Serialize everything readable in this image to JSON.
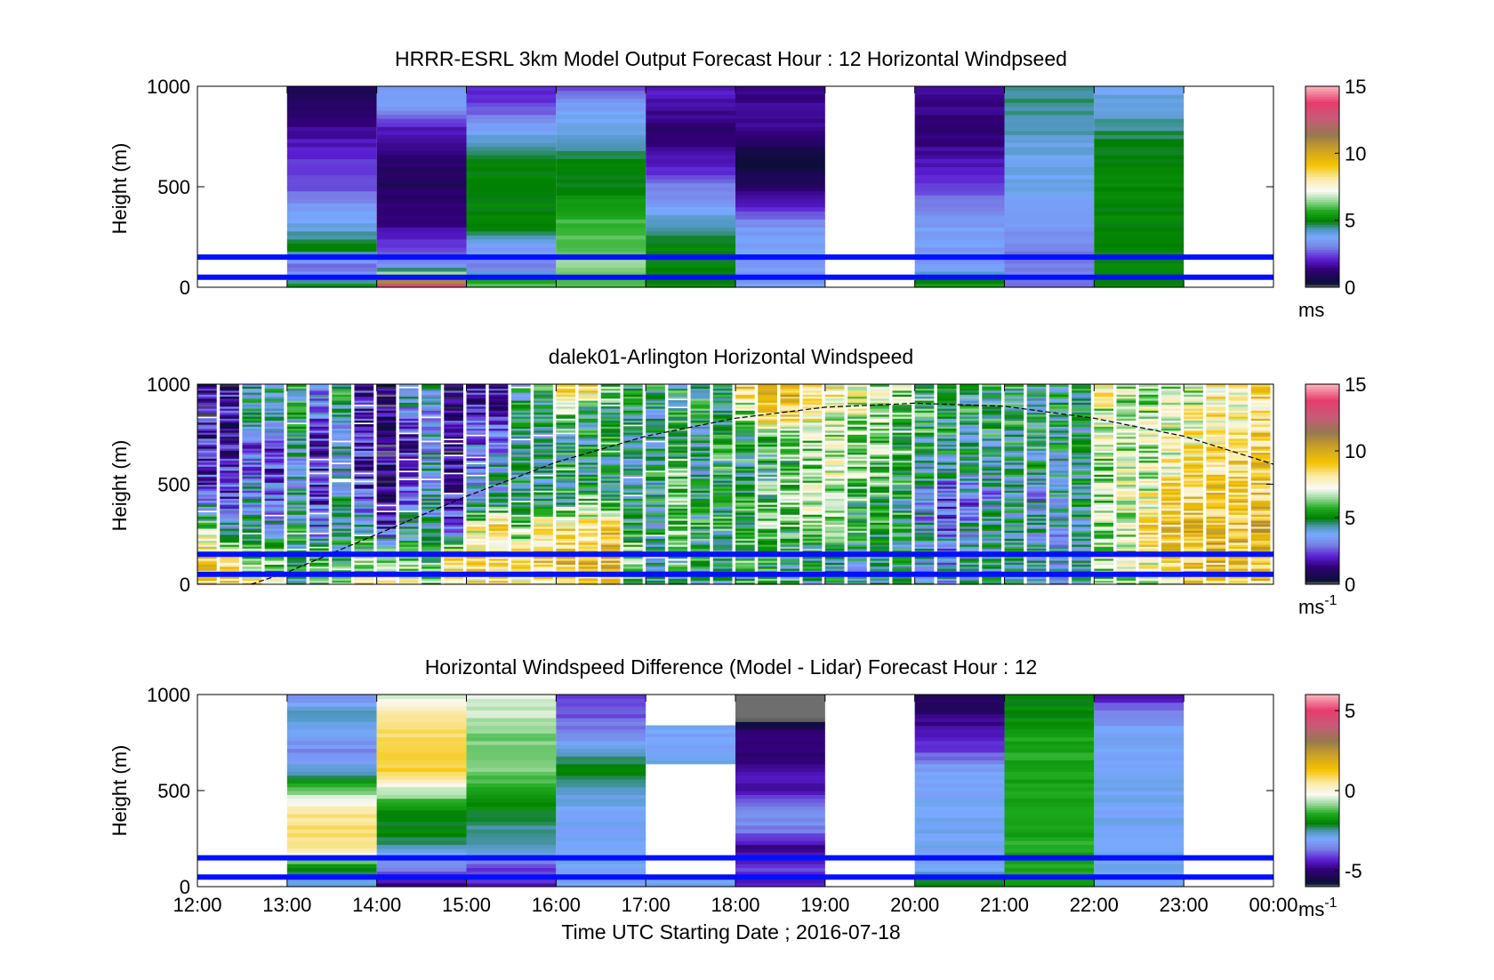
{
  "figure": {
    "xlabel": "Time UTC  Starting Date ; 2016-07-18",
    "x_tick_labels": [
      "12:00",
      "13:00",
      "14:00",
      "15:00",
      "16:00",
      "17:00",
      "18:00",
      "19:00",
      "20:00",
      "21:00",
      "22:00",
      "23:00",
      "00:00"
    ]
  },
  "chart_data": [
    {
      "type": "heatmap",
      "title": "HRRR-ESRL 3km Model Output   Forecast Hour : 12 Horizontal Windpseed",
      "ylabel": "Height (m)",
      "y_ticks": [
        0,
        500,
        1000
      ],
      "ylim": [
        0,
        1000
      ],
      "xlim_hours": [
        12,
        24
      ],
      "colorbar": {
        "range": [
          0,
          15
        ],
        "ticks": [
          0,
          5,
          10,
          15
        ],
        "unit": "ms",
        "unit_sup": ""
      },
      "reference_lines_m": [
        150,
        50
      ],
      "columns": [
        {
          "start_hour": 13,
          "profile_m_s": [
            5.5,
            2.5,
            5,
            4,
            3.5,
            2.5,
            2.5,
            2,
            1.5,
            1,
            0.8
          ]
        },
        {
          "start_hour": 14,
          "profile_m_s": [
            14,
            3.5,
            2.5,
            1.5,
            1.2,
            1,
            1,
            1.5,
            2,
            3.5,
            3.5
          ]
        },
        {
          "start_hour": 15,
          "profile_m_s": [
            6.5,
            3,
            3.5,
            5,
            5,
            5,
            5,
            4.5,
            3.5,
            2.5,
            2
          ]
        },
        {
          "start_hour": 16,
          "profile_m_s": [
            6,
            6.5,
            6,
            6,
            5.5,
            5,
            5,
            4.5,
            4,
            3.5,
            2.5
          ]
        },
        {
          "start_hour": 17,
          "profile_m_s": [
            5,
            5,
            5,
            4.5,
            3.5,
            3,
            2,
            1.5,
            1.2,
            1.8,
            2
          ]
        },
        {
          "start_hour": 18,
          "profile_m_s": [
            3.5,
            3.5,
            3.5,
            3.5,
            2,
            1.2,
            0.4,
            0.8,
            1.5,
            1.5,
            1.5
          ]
        },
        {
          "start_hour": 20,
          "profile_m_s": [
            5.5,
            3.5,
            3.5,
            3.5,
            3,
            2.5,
            2,
            1.5,
            1.2,
            1.5,
            1.5
          ]
        },
        {
          "start_hour": 21,
          "profile_m_s": [
            3,
            3,
            3,
            3.5,
            3.5,
            4,
            4,
            4,
            4.5,
            4.5,
            4.5
          ]
        },
        {
          "start_hour": 22,
          "profile_m_s": [
            5,
            5,
            5,
            5,
            5,
            5,
            5,
            5,
            4.5,
            4,
            4
          ]
        }
      ]
    },
    {
      "type": "heatmap",
      "title": "dalek01-Arlington  Horizontal Windspeed",
      "ylabel": "Height (m)",
      "y_ticks": [
        0,
        500,
        1000
      ],
      "ylim": [
        0,
        1000
      ],
      "xlim_hours": [
        12,
        24
      ],
      "colorbar": {
        "range": [
          0,
          15
        ],
        "ticks": [
          0,
          5,
          10,
          15
        ],
        "unit": "ms",
        "unit_sup": "-1"
      },
      "reference_lines_m": [
        150,
        50
      ],
      "columns": [
        {
          "start_hour": 12.0,
          "profile_m_s": [
            9,
            8.5,
            7,
            3,
            2,
            2,
            1.5,
            1.5
          ]
        },
        {
          "start_hour": 12.25,
          "profile_m_s": [
            8.5,
            8,
            4,
            2.5,
            2,
            1.5,
            2,
            1.5
          ]
        },
        {
          "start_hour": 12.5,
          "profile_m_s": [
            8,
            6,
            4.5,
            4,
            3,
            2.5,
            5,
            4
          ]
        },
        {
          "start_hour": 12.75,
          "profile_m_s": [
            7,
            6,
            4,
            3,
            2.5,
            2.5,
            4.5,
            5
          ]
        },
        {
          "start_hour": 13.0,
          "profile_m_s": [
            5,
            4.5,
            5,
            4.5,
            4,
            4.5,
            5,
            5
          ]
        },
        {
          "start_hour": 13.25,
          "profile_m_s": [
            6,
            6,
            3,
            2.5,
            2,
            2,
            3,
            3.5
          ]
        },
        {
          "start_hour": 13.5,
          "profile_m_s": [
            7,
            5,
            4.5,
            4.5,
            4,
            3.5,
            5,
            5
          ]
        },
        {
          "start_hour": 13.75,
          "profile_m_s": [
            8.5,
            6,
            4.5,
            3,
            2,
            2,
            2,
            2
          ]
        },
        {
          "start_hour": 14.0,
          "profile_m_s": [
            8,
            7,
            2,
            1.5,
            1.5,
            1,
            1,
            1
          ]
        },
        {
          "start_hour": 14.25,
          "profile_m_s": [
            7.5,
            6,
            4.5,
            3,
            2.5,
            2,
            3.5,
            4.5
          ]
        },
        {
          "start_hour": 14.5,
          "profile_m_s": [
            7,
            5,
            4.5,
            4,
            4,
            3.5,
            3.5,
            4.5
          ]
        },
        {
          "start_hour": 14.75,
          "profile_m_s": [
            8,
            8.5,
            3,
            2,
            1.5,
            1.5,
            1.5,
            1.5
          ]
        },
        {
          "start_hour": 15.0,
          "profile_m_s": [
            8,
            8.5,
            7.5,
            4,
            3.5,
            3,
            2,
            2
          ]
        },
        {
          "start_hour": 15.25,
          "profile_m_s": [
            8.5,
            8,
            9,
            4.5,
            4,
            2.5,
            2,
            2
          ]
        },
        {
          "start_hour": 15.5,
          "profile_m_s": [
            8,
            8.5,
            6,
            5,
            5,
            4.5,
            5,
            4.5
          ]
        },
        {
          "start_hour": 15.75,
          "profile_m_s": [
            9,
            9,
            8,
            5,
            4.5,
            4.5,
            5,
            5.5
          ]
        },
        {
          "start_hour": 16.0,
          "profile_m_s": [
            9.5,
            9,
            8.5,
            5,
            5,
            5,
            6,
            9
          ]
        },
        {
          "start_hour": 16.25,
          "profile_m_s": [
            9,
            9.5,
            8.5,
            6,
            5,
            5,
            5,
            9.5
          ]
        },
        {
          "start_hour": 16.5,
          "profile_m_s": [
            9,
            9.5,
            9,
            5,
            4.5,
            5,
            5,
            6
          ]
        },
        {
          "start_hour": 16.75,
          "profile_m_s": [
            6,
            6.5,
            5.5,
            5,
            4.5,
            4.5,
            5,
            5
          ]
        },
        {
          "start_hour": 17.0,
          "profile_m_s": [
            5,
            4.5,
            4.5,
            5,
            5,
            4.5,
            4,
            5
          ]
        },
        {
          "start_hour": 17.25,
          "profile_m_s": [
            4.5,
            6,
            6.5,
            6,
            6,
            5.5,
            5,
            5
          ]
        },
        {
          "start_hour": 17.5,
          "profile_m_s": [
            4.5,
            5,
            5,
            5,
            4.5,
            4.5,
            5,
            5
          ]
        },
        {
          "start_hour": 17.75,
          "profile_m_s": [
            4,
            5,
            5.5,
            5,
            5.5,
            5,
            5,
            5
          ]
        },
        {
          "start_hour": 18.0,
          "profile_m_s": [
            5,
            5.5,
            5.5,
            5.5,
            5,
            5,
            6.5,
            9
          ]
        },
        {
          "start_hour": 18.25,
          "profile_m_s": [
            5,
            5,
            6,
            6,
            5.5,
            5.5,
            9,
            9
          ]
        },
        {
          "start_hour": 18.5,
          "profile_m_s": [
            5,
            5,
            6,
            6.5,
            6,
            6,
            9,
            9.5
          ]
        },
        {
          "start_hour": 18.75,
          "profile_m_s": [
            4.5,
            5,
            6.5,
            7,
            6.5,
            6.5,
            8,
            9
          ]
        },
        {
          "start_hour": 19.0,
          "profile_m_s": [
            4.5,
            4.5,
            6,
            6.5,
            7,
            7,
            7.5,
            8
          ]
        },
        {
          "start_hour": 19.25,
          "profile_m_s": [
            4.5,
            4.5,
            5.5,
            6,
            6.5,
            6.5,
            7,
            7.5
          ]
        },
        {
          "start_hour": 19.5,
          "profile_m_s": [
            4.5,
            4.5,
            5,
            5.5,
            6,
            6,
            6.5,
            7
          ]
        },
        {
          "start_hour": 19.75,
          "profile_m_s": [
            4.5,
            4.5,
            5,
            5,
            5.5,
            6,
            6,
            6.5
          ]
        },
        {
          "start_hour": 20.0,
          "profile_m_s": [
            4.5,
            4,
            4,
            3,
            4.5,
            5,
            5.5,
            5.5
          ]
        },
        {
          "start_hour": 20.25,
          "profile_m_s": [
            4,
            3.5,
            3,
            2.5,
            4,
            5,
            5,
            5
          ]
        },
        {
          "start_hour": 20.5,
          "profile_m_s": [
            4.5,
            4,
            4,
            3,
            4.5,
            4.5,
            5,
            5
          ]
        },
        {
          "start_hour": 20.75,
          "profile_m_s": [
            4.5,
            4,
            4.5,
            3.5,
            4.5,
            5,
            5,
            5
          ]
        },
        {
          "start_hour": 21.0,
          "profile_m_s": [
            4.5,
            4.5,
            4.5,
            4.5,
            4.5,
            5,
            5,
            5
          ]
        },
        {
          "start_hour": 21.25,
          "profile_m_s": [
            5,
            4.5,
            3.5,
            3.5,
            4.5,
            5,
            5,
            5
          ]
        },
        {
          "start_hour": 21.5,
          "profile_m_s": [
            4,
            4,
            4,
            4.5,
            4.5,
            4.5,
            5,
            5
          ]
        },
        {
          "start_hour": 21.75,
          "profile_m_s": [
            4.5,
            4.5,
            4.5,
            4.5,
            4.5,
            4.5,
            4.5,
            4.5
          ]
        },
        {
          "start_hour": 22.0,
          "profile_m_s": [
            6,
            6.5,
            6.5,
            6.5,
            6.5,
            7,
            7,
            8
          ]
        },
        {
          "start_hour": 22.25,
          "profile_m_s": [
            6.5,
            7,
            7,
            7.5,
            7,
            7,
            7,
            6.5
          ]
        },
        {
          "start_hour": 22.5,
          "profile_m_s": [
            7,
            8,
            8.5,
            7.5,
            7,
            7,
            7,
            6.5
          ]
        },
        {
          "start_hour": 22.75,
          "profile_m_s": [
            8,
            9,
            9,
            8.5,
            8,
            7.5,
            7,
            7
          ]
        },
        {
          "start_hour": 23.0,
          "profile_m_s": [
            8.5,
            9,
            9.5,
            9,
            8.5,
            8,
            7.5,
            7
          ]
        },
        {
          "start_hour": 23.25,
          "profile_m_s": [
            8.5,
            9.5,
            9.5,
            9,
            8.5,
            8,
            8,
            7.5
          ]
        },
        {
          "start_hour": 23.5,
          "profile_m_s": [
            9,
            9.5,
            9,
            9,
            8.5,
            8.5,
            8,
            8
          ]
        },
        {
          "start_hour": 23.75,
          "profile_m_s": [
            9,
            9.5,
            9.5,
            9,
            9,
            8.5,
            8.5,
            8.5
          ]
        }
      ],
      "dashed_curve": {
        "x_hours": [
          12.6,
          13,
          14,
          15,
          16,
          17,
          18,
          19,
          20,
          21,
          22,
          23,
          24
        ],
        "height_m": [
          0,
          60,
          250,
          440,
          610,
          740,
          830,
          885,
          905,
          890,
          830,
          740,
          600
        ]
      }
    },
    {
      "type": "heatmap",
      "title": "Horizontal Windspeed Difference (Model - Lidar) Forecast Hour : 12",
      "ylabel": "Height (m)",
      "y_ticks": [
        0,
        500,
        1000
      ],
      "ylim": [
        0,
        1000
      ],
      "xlim_hours": [
        12,
        24
      ],
      "colorbar": {
        "range": [
          -6,
          6
        ],
        "ticks": [
          -5,
          0,
          5
        ],
        "unit": "ms",
        "unit_sup": "-1"
      },
      "reference_lines_m": [
        150,
        50
      ],
      "columns": [
        {
          "start_hour": 13,
          "profile_m_s": [
            -3,
            -2,
            0.5,
            0.8,
            0.5,
            -1,
            -2.5,
            -3.5,
            -3,
            -2.5,
            -3.5
          ]
        },
        {
          "start_hour": 14,
          "profile_m_s": [
            -5,
            -3.5,
            -2.5,
            -2,
            -2,
            -0.5,
            1,
            1,
            0.8,
            0.5,
            -0.5
          ]
        },
        {
          "start_hour": 15,
          "profile_m_s": [
            -4.5,
            -4,
            -2.5,
            -2.5,
            -2,
            -1.5,
            -1,
            -1,
            -1,
            -0.5,
            -0.5
          ]
        },
        {
          "start_hour": 16,
          "profile_m_s": [
            -3,
            -3,
            -3,
            -3,
            -3,
            -2.5,
            -2,
            -2.5,
            -3.5,
            -4,
            -4
          ]
        },
        {
          "start_hour": 17,
          "profile_m_s": [
            -3,
            null,
            null,
            null,
            null,
            null,
            null,
            -3,
            -3,
            null,
            null
          ]
        },
        {
          "start_hour": 18,
          "profile_m_s": [
            -4.5,
            -4,
            -5,
            -3.5,
            -3.5,
            -4.5,
            -4.5,
            -5,
            -5,
            -6.5,
            -6.5
          ]
        },
        {
          "start_hour": 20,
          "profile_m_s": [
            -2,
            -3,
            -3,
            -3,
            -3,
            -3,
            -3,
            -4,
            -4.5,
            -5,
            -5.5
          ]
        },
        {
          "start_hour": 21,
          "profile_m_s": [
            -1.5,
            -1.5,
            -1.5,
            -1.5,
            -1.5,
            -1.5,
            -1.5,
            -1.5,
            -1.5,
            -2,
            -2
          ]
        },
        {
          "start_hour": 22,
          "profile_m_s": [
            -3,
            -3,
            -3,
            -3,
            -3,
            -3,
            -3,
            -3,
            -3,
            -3.5,
            -4.5
          ]
        }
      ]
    }
  ]
}
